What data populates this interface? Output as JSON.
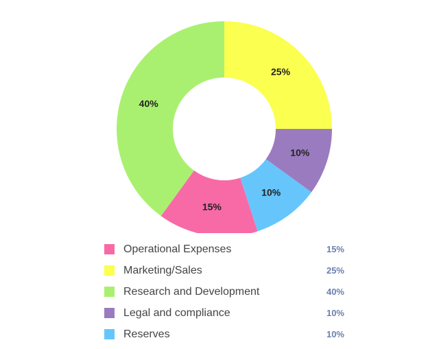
{
  "chart_data": {
    "type": "pie",
    "donut": true,
    "categories": [
      "Operational Expenses",
      "Marketing/Sales",
      "Research and Development",
      "Legal and compliance",
      "Reserves"
    ],
    "values": [
      15,
      25,
      40,
      10,
      10
    ],
    "value_labels": [
      "15%",
      "25%",
      "40%",
      "10%",
      "10%"
    ],
    "colors": [
      "#f76aa6",
      "#fbff4f",
      "#aaf070",
      "#9b7bbf",
      "#66c6fc"
    ],
    "title": "",
    "legend_position": "bottom"
  }
}
